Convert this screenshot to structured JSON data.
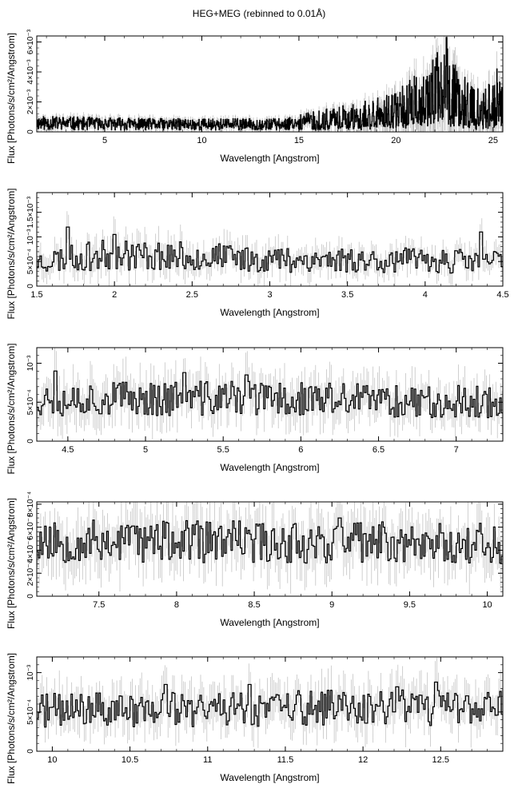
{
  "page": {
    "title": "HEG+MEG (rebinned to 0.01Å)",
    "colors": {
      "data_line": "#000000",
      "error_bar": "#bbbbbb",
      "axis": "#000000",
      "background": "#ffffff"
    }
  },
  "chart_data": [
    {
      "type": "line",
      "style": "step-with-error-bars",
      "xlabel": "Wavelength [Angstrom]",
      "ylabel": "Flux [Photons/s/cm²/Angstrom]",
      "xlim": [
        1.5,
        25.5
      ],
      "ylim": [
        0,
        0.0064
      ],
      "xticks": [
        5,
        10,
        15,
        20,
        25
      ],
      "xtick_labels": [
        "5",
        "10",
        "15",
        "20",
        "25"
      ],
      "yticks": [
        0,
        0.002,
        0.004,
        0.006
      ],
      "ytick_labels": [
        "0",
        "2×10⁻³",
        "4×10⁻³",
        "6×10⁻³"
      ],
      "trend": [
        [
          1.5,
          0.0006
        ],
        [
          8,
          0.0005
        ],
        [
          14,
          0.0005
        ],
        [
          16,
          0.0008
        ],
        [
          18,
          0.0011
        ],
        [
          20,
          0.0015
        ],
        [
          21.5,
          0.0025
        ],
        [
          22.5,
          0.0033
        ],
        [
          24,
          0.0016
        ],
        [
          25.5,
          0.0021
        ]
      ],
      "peaks": [
        [
          21.6,
          0.0037
        ],
        [
          22.1,
          0.0041
        ],
        [
          22.3,
          0.0033
        ],
        [
          22.6,
          0.0063
        ],
        [
          25.2,
          0.0042
        ],
        [
          21.2,
          0.0028
        ],
        [
          24.2,
          0.0021
        ]
      ],
      "noise_fraction": 0.55,
      "seed": 11
    },
    {
      "type": "line",
      "style": "step-with-error-bars",
      "xlabel": "Wavelength [Angstrom]",
      "ylabel": "Flux [Photons/s/cm²/Angstrom]",
      "xlim": [
        1.5,
        4.5
      ],
      "ylim": [
        0,
        0.0019
      ],
      "xticks": [
        1.5,
        2,
        2.5,
        3,
        3.5,
        4,
        4.5
      ],
      "xtick_labels": [
        "1.5",
        "2",
        "2.5",
        "3",
        "3.5",
        "4",
        "4.5"
      ],
      "yticks": [
        0,
        0.0005,
        0.001,
        0.0015
      ],
      "ytick_labels": [
        "0",
        "5×10⁻⁴",
        "10⁻³",
        "1.5×10⁻³"
      ],
      "trend": [
        [
          1.5,
          0.0005
        ],
        [
          2,
          0.00065
        ],
        [
          3,
          0.00055
        ],
        [
          4.5,
          0.0005
        ]
      ],
      "peaks": [
        [
          1.7,
          0.0012
        ],
        [
          2.0,
          0.00105
        ],
        [
          4.36,
          0.0011
        ]
      ],
      "noise_fraction": 0.35,
      "seed": 23
    },
    {
      "type": "line",
      "style": "step-with-error-bars",
      "xlabel": "Wavelength [Angstrom]",
      "ylabel": "Flux [Photons/s/cm²/Angstrom]",
      "xlim": [
        4.3,
        7.3
      ],
      "ylim": [
        0,
        0.0012
      ],
      "xticks": [
        4.5,
        5,
        5.5,
        6,
        6.5,
        7
      ],
      "xtick_labels": [
        "4.5",
        "5",
        "5.5",
        "6",
        "6.5",
        "7"
      ],
      "yticks": [
        0,
        0.0005,
        0.001
      ],
      "ytick_labels": [
        "0",
        "5×10⁻⁴",
        "10⁻³"
      ],
      "trend": [
        [
          4.3,
          0.00055
        ],
        [
          5.5,
          0.00055
        ],
        [
          7.3,
          0.0005
        ]
      ],
      "peaks": [
        [
          4.42,
          0.0009
        ],
        [
          5.25,
          0.00088
        ],
        [
          5.65,
          0.00085
        ]
      ],
      "noise_fraction": 0.3,
      "seed": 37
    },
    {
      "type": "line",
      "style": "step-with-error-bars",
      "xlabel": "Wavelength [Angstrom]",
      "ylabel": "Flux [Photons/s/cm²/Angstrom]",
      "xlim": [
        7.1,
        10.1
      ],
      "ylim": [
        0,
        0.00082
      ],
      "xticks": [
        7.5,
        8,
        8.5,
        9,
        9.5,
        10
      ],
      "xtick_labels": [
        "7.5",
        "8",
        "8.5",
        "9",
        "9.5",
        "10"
      ],
      "yticks": [
        0,
        0.0002,
        0.0004,
        0.0006,
        0.0008
      ],
      "ytick_labels": [
        "0",
        "2×10⁻⁴",
        "4×10⁻⁴",
        "6×10⁻⁴",
        "8×10⁻⁴"
      ],
      "trend": [
        [
          7.1,
          0.00048
        ],
        [
          8.5,
          0.00047
        ],
        [
          10.1,
          0.00046
        ]
      ],
      "peaks": [
        [
          9.05,
          0.00068
        ],
        [
          7.72,
          0.00061
        ]
      ],
      "noise_fraction": 0.28,
      "seed": 53
    },
    {
      "type": "line",
      "style": "step-with-error-bars",
      "xlabel": "Wavelength [Angstrom]",
      "ylabel": "Flux [Photons/s/cm²/Angstrom]",
      "xlim": [
        9.9,
        12.9
      ],
      "ylim": [
        0,
        0.0012
      ],
      "xticks": [
        10,
        10.5,
        11,
        11.5,
        12,
        12.5
      ],
      "xtick_labels": [
        "10",
        "10.5",
        "11",
        "11.5",
        "12",
        "12.5"
      ],
      "yticks": [
        0,
        0.0005,
        0.001
      ],
      "ytick_labels": [
        "0",
        "5×10⁻⁴",
        "10⁻³"
      ],
      "trend": [
        [
          9.9,
          0.00052
        ],
        [
          11.5,
          0.00055
        ],
        [
          12.9,
          0.00055
        ]
      ],
      "peaks": [
        [
          10.73,
          0.00085
        ],
        [
          11.27,
          0.00085
        ],
        [
          12.22,
          0.00082
        ],
        [
          12.47,
          0.00088
        ]
      ],
      "noise_fraction": 0.3,
      "seed": 71
    }
  ]
}
